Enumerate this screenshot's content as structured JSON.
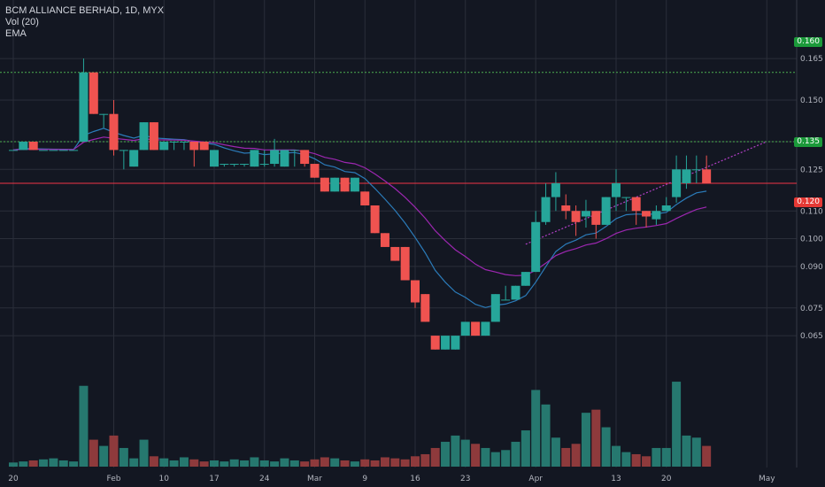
{
  "legend": {
    "symbol_line": "BCM ALLIANCE BERHAD, 1D, MYX",
    "vol_label": "Vol (20)",
    "ema_label": "EMA"
  },
  "colors": {
    "background": "#131722",
    "up": "#26a69a",
    "down": "#ef5350",
    "up_volume": "#26786f",
    "down_volume": "#8e3a3c",
    "ema_short": "#2b7bb9",
    "ema_long": "#9c27b0",
    "trendline": "#b23fc6",
    "horizontal_green": "#4caf50",
    "horizontal_red": "#f23645",
    "grid": "#2a2e39"
  },
  "price_labels": {
    "upper_level": "0.160",
    "mid_level": "0.135",
    "support_level": "0.120"
  },
  "chart_data": {
    "type": "candlestick",
    "title": "BCM ALLIANCE BERHAD, 1D, MYX",
    "y_ticks": [
      "0.165",
      "0.150",
      "0.135",
      "0.125",
      "0.110",
      "0.100",
      "0.090",
      "0.075",
      "0.065"
    ],
    "x_ticks": [
      "20",
      "Feb",
      "10",
      "17",
      "24",
      "Mar",
      "9",
      "16",
      "23",
      "Apr",
      "13",
      "20",
      "May"
    ],
    "horizontal_lines": [
      {
        "value": 0.16,
        "color": "green",
        "style": "dotted"
      },
      {
        "value": 0.135,
        "color": "green",
        "style": "dotted"
      },
      {
        "value": 0.12,
        "color": "red",
        "style": "solid"
      }
    ],
    "trendline": {
      "from": {
        "date": "Mar 30",
        "price": 0.098
      },
      "to": {
        "date": "Apr 26",
        "price": 0.135
      }
    },
    "candles": [
      {
        "date": "Jan 20",
        "o": 0.132,
        "h": 0.132,
        "l": 0.132,
        "c": 0.132
      },
      {
        "date": "Jan 21",
        "o": 0.132,
        "h": 0.135,
        "l": 0.132,
        "c": 0.135
      },
      {
        "date": "Jan 22",
        "o": 0.135,
        "h": 0.135,
        "l": 0.132,
        "c": 0.132
      },
      {
        "date": "Jan 23",
        "o": 0.132,
        "h": 0.132,
        "l": 0.132,
        "c": 0.132
      },
      {
        "date": "Jan 24",
        "o": 0.132,
        "h": 0.132,
        "l": 0.132,
        "c": 0.132
      },
      {
        "date": "Jan 27",
        "o": 0.132,
        "h": 0.132,
        "l": 0.132,
        "c": 0.132
      },
      {
        "date": "Jan 28",
        "o": 0.132,
        "h": 0.132,
        "l": 0.132,
        "c": 0.132
      },
      {
        "date": "Jan 29",
        "o": 0.135,
        "h": 0.165,
        "l": 0.135,
        "c": 0.16
      },
      {
        "date": "Jan 30",
        "o": 0.16,
        "h": 0.16,
        "l": 0.145,
        "c": 0.145
      },
      {
        "date": "Jan 31",
        "o": 0.145,
        "h": 0.145,
        "l": 0.14,
        "c": 0.145
      },
      {
        "date": "Feb 3",
        "o": 0.145,
        "h": 0.15,
        "l": 0.13,
        "c": 0.132
      },
      {
        "date": "Feb 4",
        "o": 0.132,
        "h": 0.132,
        "l": 0.125,
        "c": 0.132
      },
      {
        "date": "Feb 5",
        "o": 0.126,
        "h": 0.132,
        "l": 0.126,
        "c": 0.132
      },
      {
        "date": "Feb 6",
        "o": 0.132,
        "h": 0.142,
        "l": 0.132,
        "c": 0.142
      },
      {
        "date": "Feb 7",
        "o": 0.142,
        "h": 0.142,
        "l": 0.132,
        "c": 0.132
      },
      {
        "date": "Feb 10",
        "o": 0.132,
        "h": 0.135,
        "l": 0.132,
        "c": 0.135
      },
      {
        "date": "Feb 11",
        "o": 0.135,
        "h": 0.135,
        "l": 0.132,
        "c": 0.135
      },
      {
        "date": "Feb 12",
        "o": 0.135,
        "h": 0.135,
        "l": 0.132,
        "c": 0.135
      },
      {
        "date": "Feb 13",
        "o": 0.135,
        "h": 0.135,
        "l": 0.126,
        "c": 0.132
      },
      {
        "date": "Feb 14",
        "o": 0.135,
        "h": 0.135,
        "l": 0.132,
        "c": 0.132
      },
      {
        "date": "Feb 17",
        "o": 0.126,
        "h": 0.132,
        "l": 0.126,
        "c": 0.132
      },
      {
        "date": "Feb 18",
        "o": 0.127,
        "h": 0.127,
        "l": 0.126,
        "c": 0.127
      },
      {
        "date": "Feb 19",
        "o": 0.127,
        "h": 0.127,
        "l": 0.126,
        "c": 0.127
      },
      {
        "date": "Feb 20",
        "o": 0.127,
        "h": 0.127,
        "l": 0.126,
        "c": 0.127
      },
      {
        "date": "Feb 21",
        "o": 0.126,
        "h": 0.132,
        "l": 0.126,
        "c": 0.132
      },
      {
        "date": "Feb 24",
        "o": 0.127,
        "h": 0.132,
        "l": 0.126,
        "c": 0.127
      },
      {
        "date": "Feb 25",
        "o": 0.127,
        "h": 0.136,
        "l": 0.126,
        "c": 0.132
      },
      {
        "date": "Feb 26",
        "o": 0.126,
        "h": 0.132,
        "l": 0.126,
        "c": 0.132
      },
      {
        "date": "Feb 27",
        "o": 0.132,
        "h": 0.132,
        "l": 0.126,
        "c": 0.132
      },
      {
        "date": "Feb 28",
        "o": 0.132,
        "h": 0.132,
        "l": 0.126,
        "c": 0.127
      },
      {
        "date": "Mar 2",
        "o": 0.127,
        "h": 0.127,
        "l": 0.122,
        "c": 0.122
      },
      {
        "date": "Mar 3",
        "o": 0.122,
        "h": 0.122,
        "l": 0.117,
        "c": 0.117
      },
      {
        "date": "Mar 4",
        "o": 0.117,
        "h": 0.122,
        "l": 0.117,
        "c": 0.122
      },
      {
        "date": "Mar 5",
        "o": 0.122,
        "h": 0.122,
        "l": 0.117,
        "c": 0.117
      },
      {
        "date": "Mar 6",
        "o": 0.117,
        "h": 0.122,
        "l": 0.117,
        "c": 0.122
      },
      {
        "date": "Mar 9",
        "o": 0.117,
        "h": 0.117,
        "l": 0.112,
        "c": 0.112
      },
      {
        "date": "Mar 10",
        "o": 0.112,
        "h": 0.112,
        "l": 0.102,
        "c": 0.102
      },
      {
        "date": "Mar 11",
        "o": 0.102,
        "h": 0.102,
        "l": 0.097,
        "c": 0.097
      },
      {
        "date": "Mar 12",
        "o": 0.097,
        "h": 0.097,
        "l": 0.092,
        "c": 0.092
      },
      {
        "date": "Mar 13",
        "o": 0.097,
        "h": 0.097,
        "l": 0.085,
        "c": 0.085
      },
      {
        "date": "Mar 16",
        "o": 0.085,
        "h": 0.085,
        "l": 0.075,
        "c": 0.077
      },
      {
        "date": "Mar 17",
        "o": 0.08,
        "h": 0.08,
        "l": 0.07,
        "c": 0.07
      },
      {
        "date": "Mar 18",
        "o": 0.065,
        "h": 0.065,
        "l": 0.06,
        "c": 0.06
      },
      {
        "date": "Mar 19",
        "o": 0.06,
        "h": 0.065,
        "l": 0.06,
        "c": 0.065
      },
      {
        "date": "Mar 20",
        "o": 0.06,
        "h": 0.065,
        "l": 0.06,
        "c": 0.065
      },
      {
        "date": "Mar 23",
        "o": 0.065,
        "h": 0.07,
        "l": 0.065,
        "c": 0.07
      },
      {
        "date": "Mar 24",
        "o": 0.07,
        "h": 0.07,
        "l": 0.065,
        "c": 0.065
      },
      {
        "date": "Mar 25",
        "o": 0.065,
        "h": 0.07,
        "l": 0.065,
        "c": 0.07
      },
      {
        "date": "Mar 26",
        "o": 0.07,
        "h": 0.08,
        "l": 0.07,
        "c": 0.08
      },
      {
        "date": "Mar 27",
        "o": 0.078,
        "h": 0.083,
        "l": 0.078,
        "c": 0.078
      },
      {
        "date": "Mar 30",
        "o": 0.078,
        "h": 0.083,
        "l": 0.078,
        "c": 0.083
      },
      {
        "date": "Mar 31",
        "o": 0.083,
        "h": 0.088,
        "l": 0.083,
        "c": 0.088
      },
      {
        "date": "Apr 1",
        "o": 0.088,
        "h": 0.11,
        "l": 0.088,
        "c": 0.106
      },
      {
        "date": "Apr 2",
        "o": 0.106,
        "h": 0.12,
        "l": 0.105,
        "c": 0.115
      },
      {
        "date": "Apr 3",
        "o": 0.115,
        "h": 0.124,
        "l": 0.11,
        "c": 0.12
      },
      {
        "date": "Apr 6",
        "o": 0.112,
        "h": 0.116,
        "l": 0.107,
        "c": 0.11
      },
      {
        "date": "Apr 7",
        "o": 0.11,
        "h": 0.112,
        "l": 0.101,
        "c": 0.106
      },
      {
        "date": "Apr 8",
        "o": 0.108,
        "h": 0.114,
        "l": 0.104,
        "c": 0.11
      },
      {
        "date": "Apr 9",
        "o": 0.11,
        "h": 0.11,
        "l": 0.1,
        "c": 0.105
      },
      {
        "date": "Apr 10",
        "o": 0.105,
        "h": 0.115,
        "l": 0.105,
        "c": 0.115
      },
      {
        "date": "Apr 13",
        "o": 0.115,
        "h": 0.125,
        "l": 0.11,
        "c": 0.12
      },
      {
        "date": "Apr 14",
        "o": 0.115,
        "h": 0.115,
        "l": 0.11,
        "c": 0.115
      },
      {
        "date": "Apr 15",
        "o": 0.115,
        "h": 0.115,
        "l": 0.105,
        "c": 0.11
      },
      {
        "date": "Apr 16",
        "o": 0.11,
        "h": 0.11,
        "l": 0.104,
        "c": 0.108
      },
      {
        "date": "Apr 17",
        "o": 0.107,
        "h": 0.112,
        "l": 0.105,
        "c": 0.11
      },
      {
        "date": "Apr 20",
        "o": 0.11,
        "h": 0.115,
        "l": 0.11,
        "c": 0.112
      },
      {
        "date": "Apr 21",
        "o": 0.115,
        "h": 0.13,
        "l": 0.113,
        "c": 0.125
      },
      {
        "date": "Apr 22",
        "o": 0.12,
        "h": 0.13,
        "l": 0.118,
        "c": 0.125
      },
      {
        "date": "Apr 23",
        "o": 0.125,
        "h": 0.13,
        "l": 0.12,
        "c": 0.125
      },
      {
        "date": "Apr 24",
        "o": 0.125,
        "h": 0.13,
        "l": 0.12,
        "c": 0.12
      }
    ]
  }
}
